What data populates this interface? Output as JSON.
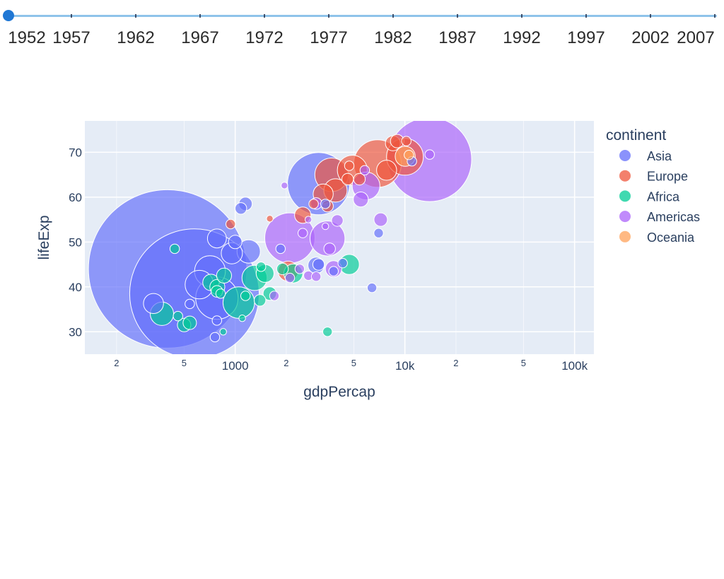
{
  "colors": {
    "plot_bg": "#e5ecf6",
    "grid": "#ffffff",
    "slider_track": "#8ec3ea",
    "slider_handle": "#1f77d4",
    "text": "#2a3f5f",
    "Asia": "#636efa",
    "Europe": "#ef553b",
    "Africa": "#00cc96",
    "Americas": "#ab63fa",
    "Oceania": "#ffa15a"
  },
  "slider": {
    "current_year": "1952",
    "years": [
      "1952",
      "1957",
      "1962",
      "1967",
      "1972",
      "1977",
      "1982",
      "1987",
      "1992",
      "1997",
      "2002",
      "2007"
    ]
  },
  "chart_data": {
    "type": "scatter",
    "subtype": "bubble",
    "xlabel": "gdpPercap",
    "ylabel": "lifeExp",
    "xscale": "log",
    "xlim": [
      130,
      130000
    ],
    "ylim": [
      25,
      77
    ],
    "x_major_ticks": [
      {
        "value": 1000,
        "label": "1000"
      },
      {
        "value": 10000,
        "label": "10k"
      },
      {
        "value": 100000,
        "label": "100k"
      }
    ],
    "x_minor_ticks": [
      {
        "value": 200,
        "label": "2"
      },
      {
        "value": 500,
        "label": "5"
      },
      {
        "value": 2000,
        "label": "2"
      },
      {
        "value": 5000,
        "label": "5"
      },
      {
        "value": 20000,
        "label": "2"
      },
      {
        "value": 50000,
        "label": "5"
      }
    ],
    "y_ticks": [
      30,
      40,
      50,
      60,
      70
    ],
    "legend_title": "continent",
    "legend_position": "right",
    "series": [
      {
        "name": "Asia",
        "points": [
          {
            "x": 400,
            "y": 44,
            "size": 556
          },
          {
            "x": 575,
            "y": 38.5,
            "size": 372
          },
          {
            "x": 3100,
            "y": 63,
            "size": 86
          },
          {
            "x": 710,
            "y": 43.5,
            "size": 21
          },
          {
            "x": 780,
            "y": 37.5,
            "size": 40
          },
          {
            "x": 615,
            "y": 40.5,
            "size": 18
          },
          {
            "x": 330,
            "y": 36.3,
            "size": 9
          },
          {
            "x": 780,
            "y": 50.8,
            "size": 8
          },
          {
            "x": 1200,
            "y": 47.9,
            "size": 12
          },
          {
            "x": 955,
            "y": 47.5,
            "size": 10
          },
          {
            "x": 1000,
            "y": 50,
            "size": 4
          },
          {
            "x": 1080,
            "y": 57.5,
            "size": 3
          },
          {
            "x": 1150,
            "y": 58.5,
            "size": 4
          },
          {
            "x": 3000,
            "y": 44.8,
            "size": 6
          },
          {
            "x": 3100,
            "y": 45,
            "size": 3
          },
          {
            "x": 3400,
            "y": 58.5,
            "size": 2
          },
          {
            "x": 3800,
            "y": 43.5,
            "size": 2
          },
          {
            "x": 4300,
            "y": 45.3,
            "size": 2
          },
          {
            "x": 6400,
            "y": 39.8,
            "size": 2
          },
          {
            "x": 11000,
            "y": 68,
            "size": 2
          },
          {
            "x": 540,
            "y": 36.2,
            "size": 2
          },
          {
            "x": 760,
            "y": 28.8,
            "size": 2
          },
          {
            "x": 780,
            "y": 32.5,
            "size": 2
          },
          {
            "x": 1850,
            "y": 48.5,
            "size": 2
          },
          {
            "x": 7000,
            "y": 52,
            "size": 2
          }
        ]
      },
      {
        "name": "Europe",
        "points": [
          {
            "x": 6900,
            "y": 67.5,
            "size": 50
          },
          {
            "x": 10000,
            "y": 69,
            "size": 30
          },
          {
            "x": 4900,
            "y": 66,
            "size": 20
          },
          {
            "x": 3700,
            "y": 65,
            "size": 25
          },
          {
            "x": 3900,
            "y": 61.5,
            "size": 12
          },
          {
            "x": 3300,
            "y": 60.7,
            "size": 9
          },
          {
            "x": 2050,
            "y": 43.5,
            "size": 9
          },
          {
            "x": 2500,
            "y": 56,
            "size": 6
          },
          {
            "x": 8500,
            "y": 72,
            "size": 5
          },
          {
            "x": 7800,
            "y": 66,
            "size": 9
          },
          {
            "x": 9000,
            "y": 72.5,
            "size": 4
          },
          {
            "x": 5400,
            "y": 64,
            "size": 3
          },
          {
            "x": 4600,
            "y": 64,
            "size": 3
          },
          {
            "x": 3500,
            "y": 58,
            "size": 3
          },
          {
            "x": 940,
            "y": 54,
            "size": 2
          },
          {
            "x": 1600,
            "y": 55.2,
            "size": 1
          },
          {
            "x": 10200,
            "y": 72.5,
            "size": 2
          },
          {
            "x": 4700,
            "y": 67,
            "size": 2
          },
          {
            "x": 2900,
            "y": 58.5,
            "size": 2
          }
        ]
      },
      {
        "name": "Africa",
        "points": [
          {
            "x": 1050,
            "y": 36.5,
            "size": 22
          },
          {
            "x": 1300,
            "y": 42,
            "size": 14
          },
          {
            "x": 370,
            "y": 34,
            "size": 12
          },
          {
            "x": 4700,
            "y": 45,
            "size": 9
          },
          {
            "x": 2200,
            "y": 43,
            "size": 8
          },
          {
            "x": 1500,
            "y": 43,
            "size": 7
          },
          {
            "x": 720,
            "y": 41,
            "size": 6
          },
          {
            "x": 785,
            "y": 40,
            "size": 5
          },
          {
            "x": 860,
            "y": 42.5,
            "size": 5
          },
          {
            "x": 500,
            "y": 31.5,
            "size": 4
          },
          {
            "x": 540,
            "y": 32,
            "size": 4
          },
          {
            "x": 780,
            "y": 39,
            "size": 3
          },
          {
            "x": 1600,
            "y": 38.5,
            "size": 4
          },
          {
            "x": 1400,
            "y": 37,
            "size": 3
          },
          {
            "x": 440,
            "y": 48.5,
            "size": 2
          },
          {
            "x": 460,
            "y": 33.5,
            "size": 2
          },
          {
            "x": 1420,
            "y": 44.5,
            "size": 2
          },
          {
            "x": 1150,
            "y": 38,
            "size": 2
          },
          {
            "x": 3500,
            "y": 30,
            "size": 2
          },
          {
            "x": 850,
            "y": 30,
            "size": 1
          },
          {
            "x": 1100,
            "y": 33,
            "size": 1
          },
          {
            "x": 1900,
            "y": 44,
            "size": 3
          },
          {
            "x": 820,
            "y": 38.5,
            "size": 2
          }
        ]
      },
      {
        "name": "Americas",
        "points": [
          {
            "x": 13990,
            "y": 68.4,
            "size": 157
          },
          {
            "x": 2100,
            "y": 50.9,
            "size": 56
          },
          {
            "x": 3500,
            "y": 50.8,
            "size": 27
          },
          {
            "x": 5900,
            "y": 62.5,
            "size": 17
          },
          {
            "x": 3800,
            "y": 44,
            "size": 6
          },
          {
            "x": 5500,
            "y": 59.5,
            "size": 5
          },
          {
            "x": 7200,
            "y": 55,
            "size": 4
          },
          {
            "x": 3000,
            "y": 58.6,
            "size": 3
          },
          {
            "x": 3600,
            "y": 48.5,
            "size": 3
          },
          {
            "x": 4000,
            "y": 54.8,
            "size": 3
          },
          {
            "x": 1700,
            "y": 38,
            "size": 2
          },
          {
            "x": 2700,
            "y": 42.5,
            "size": 2
          },
          {
            "x": 2400,
            "y": 44,
            "size": 2
          },
          {
            "x": 2100,
            "y": 42,
            "size": 2
          },
          {
            "x": 1950,
            "y": 62.6,
            "size": 1
          },
          {
            "x": 2500,
            "y": 52,
            "size": 2
          },
          {
            "x": 5800,
            "y": 66,
            "size": 2
          },
          {
            "x": 14000,
            "y": 69.5,
            "size": 2
          },
          {
            "x": 3000,
            "y": 42.3,
            "size": 2
          },
          {
            "x": 2700,
            "y": 55,
            "size": 1
          },
          {
            "x": 3400,
            "y": 53.5,
            "size": 1
          }
        ]
      },
      {
        "name": "Oceania",
        "points": [
          {
            "x": 10040,
            "y": 69.1,
            "size": 9
          },
          {
            "x": 10560,
            "y": 69.4,
            "size": 2
          }
        ]
      }
    ]
  }
}
